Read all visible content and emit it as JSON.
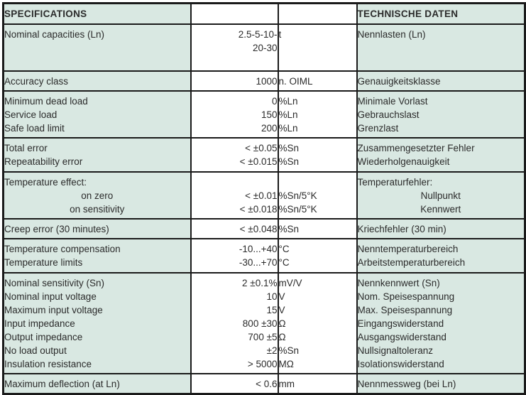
{
  "colors": {
    "cell_green": "#d9e8e2",
    "cell_white": "#ffffff",
    "border": "#1a1a1a",
    "text": "#2b2b2b"
  },
  "table": {
    "header": {
      "spec": "SPECIFICATIONS",
      "value": "",
      "unit": "",
      "german": "TECHNISCHE DATEN"
    },
    "rows": [
      {
        "spec": [
          {
            "text": "Nominal capacities (Ln)"
          }
        ],
        "value": [
          {
            "text": "2.5-5-10-"
          },
          {
            "text": "20-30"
          }
        ],
        "unit": [
          {
            "text": "t"
          }
        ],
        "german": [
          {
            "text": "Nennlasten (Ln)"
          }
        ]
      },
      {
        "spec": [
          {
            "text": "Accuracy class"
          }
        ],
        "value": [
          {
            "text": "1000"
          }
        ],
        "unit": [
          {
            "text": "n. OIML"
          }
        ],
        "german": [
          {
            "text": "Genauigkeitsklasse"
          }
        ]
      },
      {
        "spec": [
          {
            "text": "Minimum dead load"
          },
          {
            "text": "Service load"
          },
          {
            "text": "Safe load limit"
          }
        ],
        "value": [
          {
            "text": "0"
          },
          {
            "text": "150"
          },
          {
            "text": "200"
          }
        ],
        "unit": [
          {
            "text": "%Ln"
          },
          {
            "text": "%Ln"
          },
          {
            "text": "%Ln"
          }
        ],
        "german": [
          {
            "text": "Minimale Vorlast"
          },
          {
            "text": "Gebrauchslast"
          },
          {
            "text": "Grenzlast"
          }
        ]
      },
      {
        "spec": [
          {
            "text": "Total error"
          },
          {
            "text": "Repeatability error"
          }
        ],
        "value": [
          {
            "text": "< ±0.05"
          },
          {
            "text": "< ±0.015"
          }
        ],
        "unit": [
          {
            "text": "%Sn"
          },
          {
            "text": "%Sn"
          }
        ],
        "german": [
          {
            "text": "Zusammengesetzter Fehler"
          },
          {
            "text": "Wiederholgenauigkeit"
          }
        ]
      },
      {
        "spec": [
          {
            "text": "Temperature effect:"
          },
          {
            "text": "on zero",
            "align": "center"
          },
          {
            "text": "on sensitivity",
            "align": "center"
          }
        ],
        "value": [
          {
            "text": ""
          },
          {
            "text": "< ±0.01"
          },
          {
            "text": "< ±0.018"
          }
        ],
        "unit": [
          {
            "text": ""
          },
          {
            "text": "%Sn/5°K"
          },
          {
            "text": "%Sn/5°K"
          }
        ],
        "german": [
          {
            "text": "Temperaturfehler:"
          },
          {
            "text": "Nullpunkt",
            "align": "center"
          },
          {
            "text": "Kennwert",
            "align": "center"
          }
        ]
      },
      {
        "spec": [
          {
            "text": "Creep error (30 minutes)"
          }
        ],
        "value": [
          {
            "text": "< ±0.048"
          }
        ],
        "unit": [
          {
            "text": "%Sn"
          }
        ],
        "german": [
          {
            "text": "Kriechfehler (30 min)"
          }
        ]
      },
      {
        "spec": [
          {
            "text": "Temperature compensation"
          },
          {
            "text": "Temperature limits"
          }
        ],
        "value": [
          {
            "text": "-10...+40"
          },
          {
            "text": "-30...+70"
          }
        ],
        "unit": [
          {
            "text": "°C"
          },
          {
            "text": "°C"
          }
        ],
        "german": [
          {
            "text": "Nenntemperaturbereich"
          },
          {
            "text": "Arbeitstemperaturbereich"
          }
        ]
      },
      {
        "spec": [
          {
            "text": "Nominal sensitivity (Sn)"
          },
          {
            "text": "Nominal input voltage"
          },
          {
            "text": "Maximum input voltage"
          },
          {
            "text": "Input impedance"
          },
          {
            "text": "Output impedance"
          },
          {
            "text": "No load output"
          },
          {
            "text": "Insulation resistance"
          }
        ],
        "value": [
          {
            "text": "2 ±0.1%"
          },
          {
            "text": "10"
          },
          {
            "text": "15"
          },
          {
            "text": "800 ±30"
          },
          {
            "text": "700 ±5"
          },
          {
            "text": "±2"
          },
          {
            "text": "> 5000"
          }
        ],
        "unit": [
          {
            "text": "mV/V"
          },
          {
            "text": "V"
          },
          {
            "text": "V"
          },
          {
            "text": "Ω"
          },
          {
            "text": "Ω"
          },
          {
            "text": "%Sn"
          },
          {
            "text": "MΩ"
          }
        ],
        "german": [
          {
            "text": "Nennkennwert (Sn)"
          },
          {
            "text": "Nom. Speisespannung"
          },
          {
            "text": "Max. Speisespannung"
          },
          {
            "text": "Eingangswiderstand"
          },
          {
            "text": "Ausgangswiderstand"
          },
          {
            "text": "Nullsignaltoleranz"
          },
          {
            "text": "Isolationswiderstand"
          }
        ]
      },
      {
        "spec": [
          {
            "text": "Maximum deflection (at Ln)"
          }
        ],
        "value": [
          {
            "text": "< 0.6"
          }
        ],
        "unit": [
          {
            "text": "mm"
          }
        ],
        "german": [
          {
            "text": "Nennmessweg (bei Ln)"
          }
        ]
      }
    ]
  }
}
